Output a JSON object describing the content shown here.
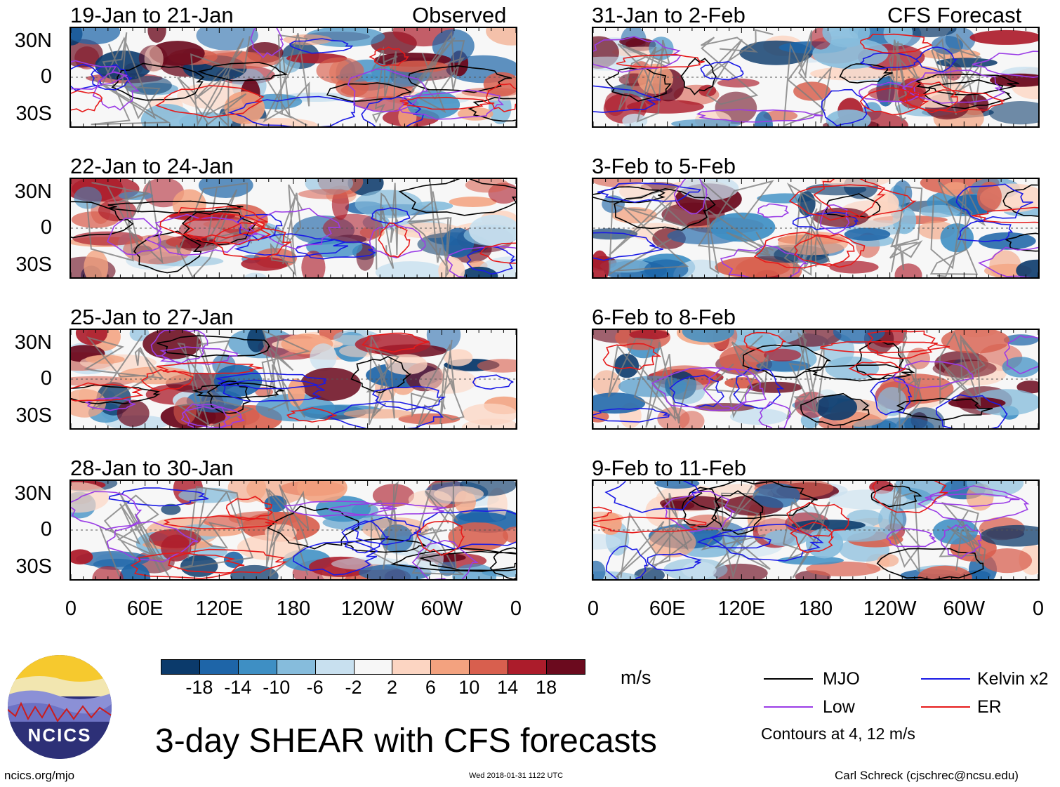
{
  "chart_data": {
    "type": "heatmap",
    "title": "3-day SHEAR with CFS forecasts",
    "variable_units": "m/s",
    "ytick_labels": [
      "30N",
      "0",
      "30S"
    ],
    "xtick_labels": [
      "0",
      "60E",
      "120E",
      "180",
      "120W",
      "60W",
      "0"
    ],
    "longitude_range": [
      0,
      360
    ],
    "latitude_range": [
      -40,
      40
    ],
    "colorbar": {
      "labels": [
        "-18",
        "-14",
        "-10",
        "-6",
        "-2",
        "2",
        "6",
        "10",
        "14",
        "18"
      ],
      "levels": [
        -18,
        -14,
        -10,
        -6,
        -2,
        2,
        6,
        10,
        14,
        18
      ],
      "colors": [
        "#0b3a6b",
        "#1e65a8",
        "#3e8fc4",
        "#86bcdc",
        "#c8e0ef",
        "#f7f7f7",
        "#fcd5c2",
        "#f3a27f",
        "#d85f4e",
        "#ac1c2b",
        "#6b0a1e"
      ]
    },
    "contours": {
      "levels": "Contours at 4, 12 m/s",
      "series": [
        {
          "name": "MJO",
          "color": "#000000"
        },
        {
          "name": "Kelvin x2",
          "color": "#1a1ae6"
        },
        {
          "name": "Low",
          "color": "#9a3ce6"
        },
        {
          "name": "ER",
          "color": "#e61a1a"
        }
      ]
    },
    "columns": [
      {
        "header": "Observed",
        "panels": [
          "19-Jan to 21-Jan",
          "22-Jan to 24-Jan",
          "25-Jan to 27-Jan",
          "28-Jan to 30-Jan"
        ]
      },
      {
        "header": "CFS Forecast",
        "panels": [
          "31-Jan to 2-Feb",
          "3-Feb to 5-Feb",
          "6-Feb to 8-Feb",
          "9-Feb to 11-Feb"
        ]
      }
    ]
  },
  "footer": {
    "logo_text": "NCICS",
    "site": "ncics.org/mjo",
    "timestamp": "Wed 2018-01-31 1122 UTC",
    "credit": "Carl Schreck (cjschrec@ncsu.edu)"
  }
}
